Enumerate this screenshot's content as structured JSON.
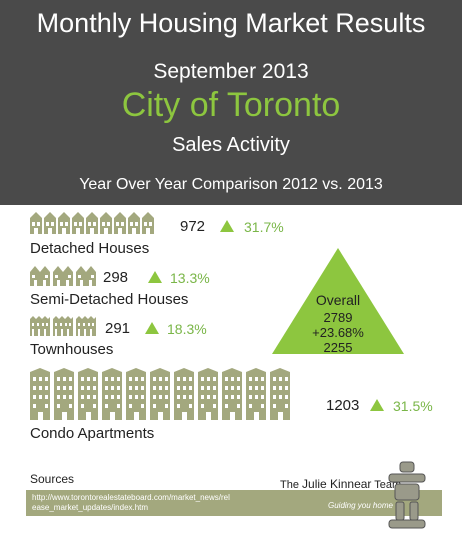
{
  "header": {
    "title": "Monthly Housing Market Results",
    "date": "September 2013",
    "city": "City of Toronto",
    "subtitle": "Sales Activity",
    "comparison": "Year Over Year Comparison 2012 vs. 2013"
  },
  "categories": [
    {
      "label": "Detached Houses",
      "count": "972",
      "change": "31.7%",
      "icon": "detached-house-icon",
      "icon_count": 9
    },
    {
      "label": "Semi-Detached Houses",
      "count": "298",
      "change": "13.3%",
      "icon": "semi-detached-house-icon",
      "icon_count": 3
    },
    {
      "label": "Townhouses",
      "count": "291",
      "change": "18.3%",
      "icon": "townhouse-icon",
      "icon_count": 3
    },
    {
      "label": "Condo Apartments",
      "count": "1203",
      "change": "31.5%",
      "icon": "condo-building-icon",
      "icon_count": 11
    }
  ],
  "overall": {
    "label": "Overall",
    "current": "2789",
    "change": "+23.68%",
    "previous": "2255"
  },
  "sources": {
    "label": "Sources",
    "url": "http://www.torontorealestateboard.com/market_news/release_market_updates/index.htm"
  },
  "brand": {
    "prefix": "The",
    "name": "Julie Kinnear",
    "suffix": "Team",
    "tagline": "Guiding you home"
  },
  "colors": {
    "header_bg": "#4a4a4a",
    "accent_green": "#8dc63f",
    "icon_green": "#a3a87e",
    "sources_bar": "#a3a87e"
  }
}
